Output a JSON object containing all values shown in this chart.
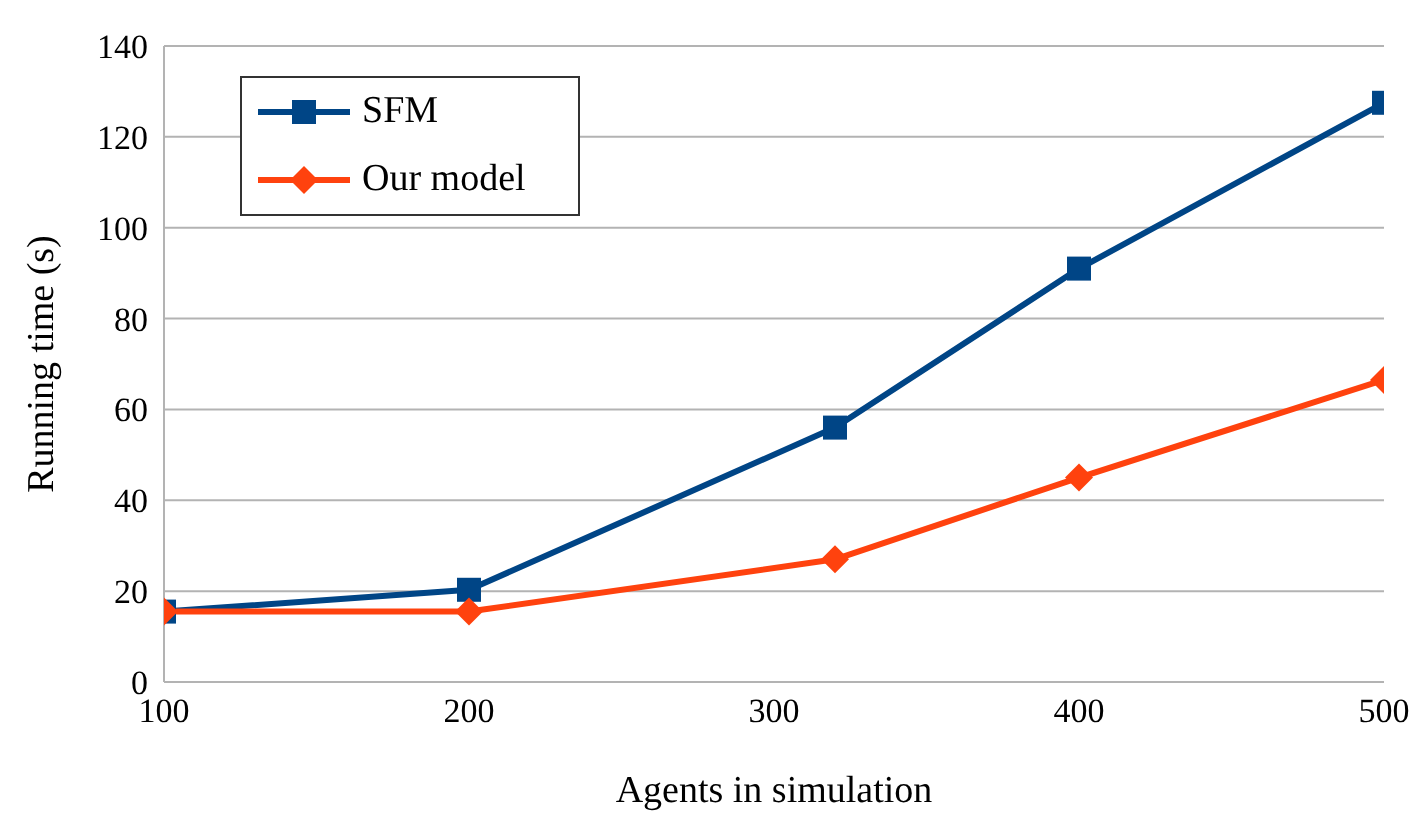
{
  "chart_data": {
    "type": "line",
    "xlabel": "Agents in simulation",
    "ylabel": "Running time (s)",
    "x": [
      100,
      200,
      320,
      400,
      500
    ],
    "series": [
      {
        "name": "SFM",
        "color": "#004586",
        "marker": "square",
        "values": [
          15.5,
          20.3,
          56,
          91,
          127.5
        ]
      },
      {
        "name": "Our model",
        "color": "#ff420e",
        "marker": "diamond",
        "values": [
          15.5,
          15.5,
          27,
          45,
          66.5
        ]
      }
    ],
    "xlim": [
      100,
      500
    ],
    "xticks": [
      100,
      200,
      300,
      400,
      500
    ],
    "ylim": [
      0,
      140
    ],
    "yticks": [
      0,
      20,
      40,
      60,
      80,
      100,
      120,
      140
    ],
    "grid": "y",
    "legend": "top left",
    "line_style": "solid"
  }
}
